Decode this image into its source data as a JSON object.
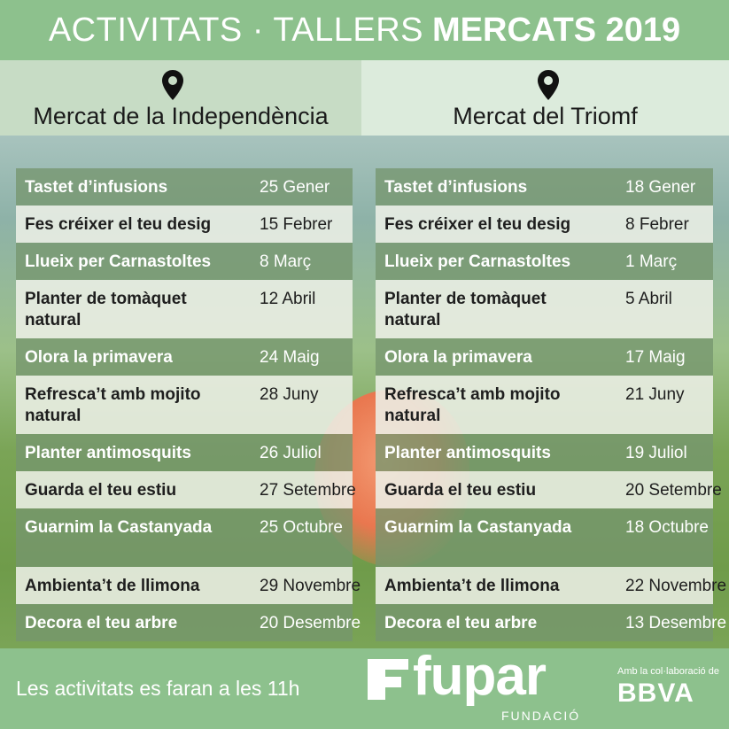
{
  "header": {
    "title_light": "ACTIVITATS · TALLERS",
    "title_bold": "MERCATS 2019"
  },
  "venues": [
    {
      "name": "Mercat de la Independència",
      "icon": "location-pin-icon"
    },
    {
      "name": "Mercat del Triomf",
      "icon": "location-pin-icon"
    }
  ],
  "schedules": {
    "left": [
      {
        "activity": "Tastet d’infusions",
        "date": "25 Gener"
      },
      {
        "activity": "Fes créixer el teu desig",
        "date": "15 Febrer"
      },
      {
        "activity": "Llueix per Carnastoltes",
        "date": "8 Març"
      },
      {
        "activity": "Planter de tomàquet natural",
        "date": "12 Abril"
      },
      {
        "activity": "Olora la primavera",
        "date": "24 Maig"
      },
      {
        "activity": "Refresca’t amb mojito natural",
        "date": "28 Juny"
      },
      {
        "activity": "Planter antimosquits",
        "date": "26 Juliol"
      },
      {
        "activity": "Guarda el teu estiu",
        "date": "27 Setembre"
      },
      {
        "activity": "Guarnim la Castanyada",
        "date": "25 Octubre"
      },
      {
        "activity": "Ambienta’t de llimona",
        "date": "29 Novembre"
      },
      {
        "activity": "Decora el teu arbre",
        "date": "20 Desembre"
      }
    ],
    "right": [
      {
        "activity": "Tastet d’infusions",
        "date": "18 Gener"
      },
      {
        "activity": "Fes créixer el teu desig",
        "date": "8 Febrer"
      },
      {
        "activity": "Llueix per Carnastoltes",
        "date": "1 Març"
      },
      {
        "activity": "Planter de tomàquet natural",
        "date": "5 Abril"
      },
      {
        "activity": "Olora la primavera",
        "date": "17 Maig"
      },
      {
        "activity": "Refresca’t amb mojito natural",
        "date": "21 Juny"
      },
      {
        "activity": "Planter antimosquits",
        "date": "19 Juliol"
      },
      {
        "activity": "Guarda el teu estiu",
        "date": "20 Setembre"
      },
      {
        "activity": "Guarnim la Castanyada",
        "date": "18 Octubre"
      },
      {
        "activity": "Ambienta’t de llimona",
        "date": "22 Novembre"
      },
      {
        "activity": "Decora el teu arbre",
        "date": "13 Desembre"
      }
    ]
  },
  "footer": {
    "note": "Les activitats es faran a les 11h",
    "brand": "fupar",
    "brand_sub": "FUNDACIÓ",
    "collab_label": "Amb la col·laboració de",
    "sponsor": "BBVA"
  },
  "colors": {
    "header_green": "#8dc18d",
    "row_dark": "#76966e",
    "row_light": "#eceee6"
  }
}
